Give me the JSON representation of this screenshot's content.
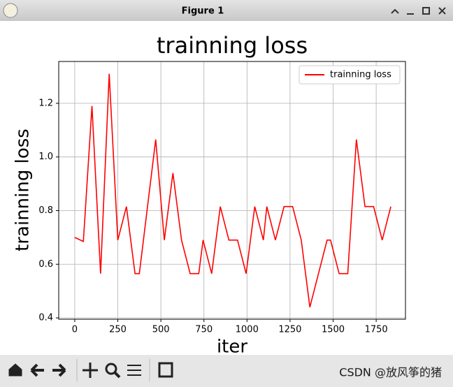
{
  "window": {
    "title": "Figure 1",
    "watermark": "CSDN @放风筝的猪"
  },
  "chart_data": {
    "type": "line",
    "title": "trainning loss",
    "xlabel": "iter",
    "ylabel": "trainning loss",
    "x": [
      0,
      50,
      100,
      150,
      200,
      250,
      300,
      350,
      375,
      470,
      520,
      570,
      620,
      670,
      720,
      745,
      795,
      845,
      895,
      945,
      995,
      1045,
      1095,
      1115,
      1165,
      1215,
      1265,
      1315,
      1365,
      1465,
      1485,
      1535,
      1585,
      1635,
      1685,
      1735,
      1785,
      1835
    ],
    "series": [
      {
        "name": "trainning loss",
        "color": "#ff0000",
        "values": [
          0.7,
          0.685,
          1.19,
          0.565,
          1.31,
          0.69,
          0.815,
          0.565,
          0.565,
          1.065,
          0.69,
          0.94,
          0.69,
          0.565,
          0.565,
          0.69,
          0.565,
          0.815,
          0.69,
          0.69,
          0.565,
          0.815,
          0.69,
          0.815,
          0.69,
          0.815,
          0.815,
          0.69,
          0.44,
          0.69,
          0.69,
          0.565,
          0.565,
          1.065,
          0.815,
          0.815,
          0.69,
          0.815
        ]
      }
    ],
    "xlim": [
      -93,
      1920
    ],
    "ylim": [
      0.395,
      1.356
    ],
    "xticks": [
      0,
      250,
      500,
      750,
      1000,
      1250,
      1500,
      1750
    ],
    "yticks": [
      0.4,
      0.6,
      0.8,
      {
        "value": 1,
        "label": "1.0"
      },
      1.2
    ],
    "grid": true,
    "legend": "upper right"
  }
}
